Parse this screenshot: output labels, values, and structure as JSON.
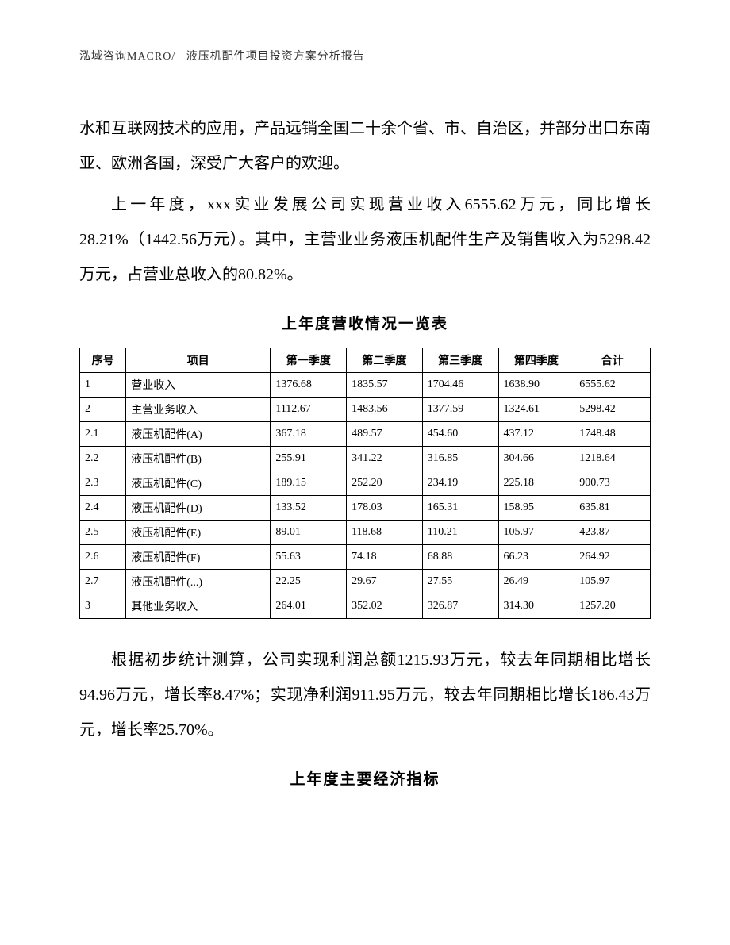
{
  "header": {
    "left": "泓域咨询MACRO/",
    "right": "液压机配件项目投资方案分析报告"
  },
  "paragraphs": {
    "p1": "水和互联网技术的应用，产品远销全国二十余个省、市、自治区，并部分出口东南亚、欧洲各国，深受广大客户的欢迎。",
    "p2": "上一年度，xxx实业发展公司实现营业收入6555.62万元，同比增长28.21%（1442.56万元）。其中，主营业业务液压机配件生产及销售收入为5298.42万元，占营业总收入的80.82%。",
    "p3": "根据初步统计测算，公司实现利润总额1215.93万元，较去年同期相比增长94.96万元，增长率8.47%；实现净利润911.95万元，较去年同期相比增长186.43万元，增长率25.70%。"
  },
  "table1": {
    "title": "上年度营收情况一览表",
    "columns": [
      "序号",
      "项目",
      "第一季度",
      "第二季度",
      "第三季度",
      "第四季度",
      "合计"
    ],
    "rows": [
      [
        "1",
        "营业收入",
        "1376.68",
        "1835.57",
        "1704.46",
        "1638.90",
        "6555.62"
      ],
      [
        "2",
        "主营业务收入",
        "1112.67",
        "1483.56",
        "1377.59",
        "1324.61",
        "5298.42"
      ],
      [
        "2.1",
        "液压机配件(A)",
        "367.18",
        "489.57",
        "454.60",
        "437.12",
        "1748.48"
      ],
      [
        "2.2",
        "液压机配件(B)",
        "255.91",
        "341.22",
        "316.85",
        "304.66",
        "1218.64"
      ],
      [
        "2.3",
        "液压机配件(C)",
        "189.15",
        "252.20",
        "234.19",
        "225.18",
        "900.73"
      ],
      [
        "2.4",
        "液压机配件(D)",
        "133.52",
        "178.03",
        "165.31",
        "158.95",
        "635.81"
      ],
      [
        "2.5",
        "液压机配件(E)",
        "89.01",
        "118.68",
        "110.21",
        "105.97",
        "423.87"
      ],
      [
        "2.6",
        "液压机配件(F)",
        "55.63",
        "74.18",
        "68.88",
        "66.23",
        "264.92"
      ],
      [
        "2.7",
        "液压机配件(...)",
        "22.25",
        "29.67",
        "27.55",
        "26.49",
        "105.97"
      ],
      [
        "3",
        "其他业务收入",
        "264.01",
        "352.02",
        "326.87",
        "314.30",
        "1257.20"
      ]
    ]
  },
  "table2": {
    "title": "上年度主要经济指标"
  }
}
